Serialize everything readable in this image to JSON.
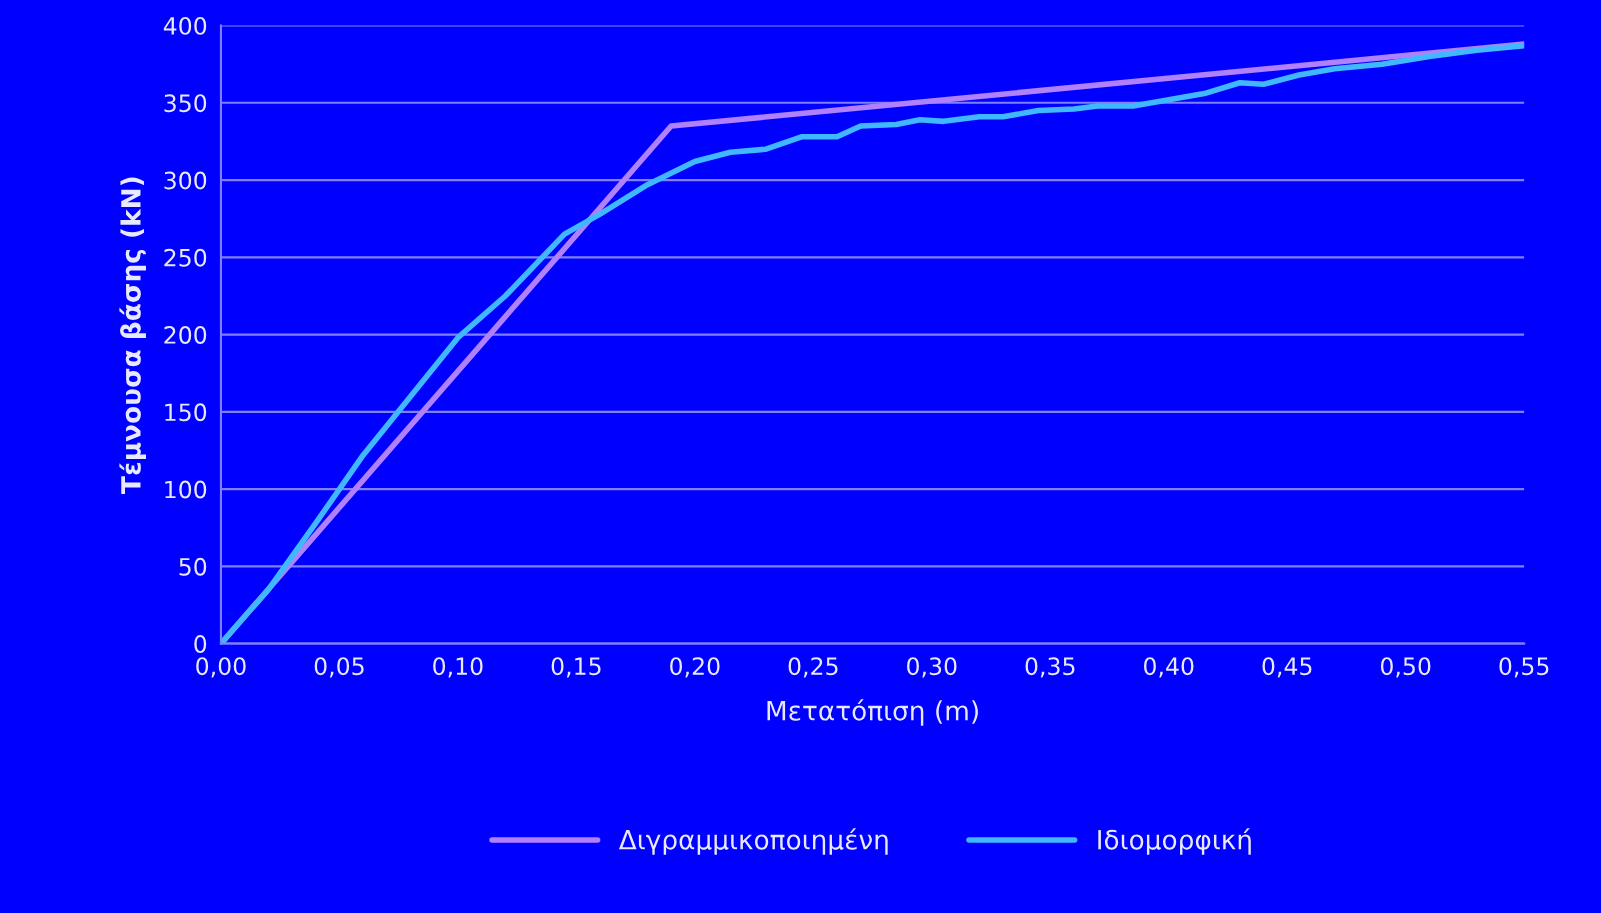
{
  "chart_data": {
    "type": "line",
    "xlabel": "Μετατόπιση (m)",
    "ylabel": "Τέμνουσα βάσης (kN)",
    "xlim": [
      0,
      0.55
    ],
    "ylim": [
      0,
      400
    ],
    "xticks": [
      {
        "value": 0,
        "label": "0,00"
      },
      {
        "value": 0.05,
        "label": "0,05"
      },
      {
        "value": 0.1,
        "label": "0,10"
      },
      {
        "value": 0.15,
        "label": "0,15"
      },
      {
        "value": 0.2,
        "label": "0,20"
      },
      {
        "value": 0.25,
        "label": "0,25"
      },
      {
        "value": 0.3,
        "label": "0,30"
      },
      {
        "value": 0.35,
        "label": "0,35"
      },
      {
        "value": 0.4,
        "label": "0,40"
      },
      {
        "value": 0.45,
        "label": "0,45"
      },
      {
        "value": 0.5,
        "label": "0,50"
      },
      {
        "value": 0.55,
        "label": "0,55"
      }
    ],
    "yticks": [
      0,
      50,
      100,
      150,
      200,
      250,
      300,
      350,
      400
    ],
    "grid": "y",
    "legend": "bottom",
    "marker": "none",
    "line_style": "solid",
    "series": [
      {
        "name": "Διγραμμικοποιημένη",
        "color": "#b080ff",
        "x": [
          0,
          0.19,
          0.55
        ],
        "values": [
          0,
          335,
          388
        ]
      },
      {
        "name": "Ιδιομορφική",
        "color": "#40b8ff",
        "x": [
          0,
          0.02,
          0.04,
          0.06,
          0.08,
          0.1,
          0.12,
          0.145,
          0.16,
          0.18,
          0.2,
          0.215,
          0.23,
          0.245,
          0.26,
          0.27,
          0.285,
          0.295,
          0.305,
          0.32,
          0.33,
          0.345,
          0.36,
          0.37,
          0.385,
          0.4,
          0.415,
          0.43,
          0.44,
          0.455,
          0.47,
          0.49,
          0.51,
          0.53,
          0.55
        ],
        "values": [
          0,
          35,
          78,
          122,
          160,
          198,
          225,
          265,
          278,
          297,
          312,
          318,
          320,
          328,
          328,
          335,
          336,
          339,
          338,
          341,
          341,
          345,
          346,
          348,
          348,
          352,
          356,
          363,
          362,
          368,
          372,
          375,
          380,
          384,
          387
        ]
      }
    ]
  }
}
